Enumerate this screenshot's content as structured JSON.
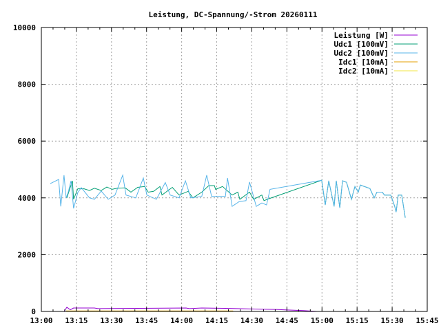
{
  "chart_data": {
    "type": "line",
    "title": "Leistung, DC-Spannung/-Strom 20260111",
    "xlabel": "",
    "ylabel": "",
    "x_unit": "minutes after 13:00",
    "xlim": [
      0,
      165
    ],
    "ylim": [
      0,
      10000
    ],
    "grid": true,
    "legend_position": "top-right",
    "x_ticks": [
      {
        "value": 0,
        "label": "13:00"
      },
      {
        "value": 15,
        "label": "13:15"
      },
      {
        "value": 30,
        "label": "13:30"
      },
      {
        "value": 45,
        "label": "13:45"
      },
      {
        "value": 60,
        "label": "14:00"
      },
      {
        "value": 75,
        "label": "14:15"
      },
      {
        "value": 90,
        "label": "14:30"
      },
      {
        "value": 105,
        "label": "14:45"
      },
      {
        "value": 120,
        "label": "15:00"
      },
      {
        "value": 135,
        "label": "15:15"
      },
      {
        "value": 150,
        "label": "15:30"
      },
      {
        "value": 165,
        "label": "15:45"
      }
    ],
    "y_ticks": [
      {
        "value": 0,
        "label": "0"
      },
      {
        "value": 2000,
        "label": "2000"
      },
      {
        "value": 4000,
        "label": "4000"
      },
      {
        "value": 6000,
        "label": "6000"
      },
      {
        "value": 8000,
        "label": "8000"
      },
      {
        "value": 10000,
        "label": "10000"
      }
    ],
    "series": [
      {
        "name": "Leistung [W]",
        "color": "#9400d3",
        "points": [
          [
            9.7,
            0
          ],
          [
            10.9,
            145
          ],
          [
            12.4,
            60
          ],
          [
            13.8,
            120
          ],
          [
            22.7,
            120
          ],
          [
            24.2,
            100
          ],
          [
            61.9,
            120
          ],
          [
            63.3,
            100
          ],
          [
            68.6,
            120
          ],
          [
            78.7,
            110
          ],
          [
            83.4,
            100
          ],
          [
            100.2,
            70
          ],
          [
            105.2,
            50
          ],
          [
            112,
            30
          ],
          [
            117.9,
            0
          ]
        ]
      },
      {
        "name": "Udc1 [100mV]",
        "color": "#009e73",
        "points": [
          [
            10.9,
            4000
          ],
          [
            13.3,
            4600
          ],
          [
            13.8,
            3950
          ],
          [
            15.6,
            4320
          ],
          [
            18.3,
            4320
          ],
          [
            20.6,
            4260
          ],
          [
            22.7,
            4340
          ],
          [
            25.6,
            4260
          ],
          [
            28.0,
            4380
          ],
          [
            30.3,
            4300
          ],
          [
            32.4,
            4340
          ],
          [
            35.9,
            4350
          ],
          [
            38.3,
            4200
          ],
          [
            41.2,
            4370
          ],
          [
            44.2,
            4400
          ],
          [
            45.7,
            4200
          ],
          [
            48.0,
            4230
          ],
          [
            50.7,
            4400
          ],
          [
            51.6,
            4100
          ],
          [
            56.0,
            4370
          ],
          [
            58.9,
            4100
          ],
          [
            62.8,
            4230
          ],
          [
            64.8,
            4000
          ],
          [
            68.6,
            4200
          ],
          [
            71.6,
            4430
          ],
          [
            74.0,
            4430
          ],
          [
            74.5,
            4300
          ],
          [
            77.5,
            4400
          ],
          [
            81.6,
            4100
          ],
          [
            84.0,
            4200
          ],
          [
            84.9,
            3950
          ],
          [
            89.0,
            4200
          ],
          [
            90.8,
            3950
          ],
          [
            94.3,
            4100
          ],
          [
            95.2,
            3900
          ],
          [
            96.6,
            3950
          ],
          [
            119.9,
            4620
          ],
          [
            121.4,
            3750
          ],
          [
            122.9,
            4600
          ],
          [
            125.2,
            3700
          ],
          [
            126.1,
            4600
          ],
          [
            127.6,
            3650
          ],
          [
            128.8,
            4600
          ],
          [
            130.5,
            4550
          ],
          [
            132.6,
            3950
          ],
          [
            134.1,
            4400
          ],
          [
            135.5,
            4200
          ],
          [
            136.4,
            4450
          ],
          [
            140.5,
            4330
          ],
          [
            142.3,
            4000
          ],
          [
            143.5,
            4200
          ],
          [
            145.8,
            4200
          ],
          [
            146.7,
            4100
          ],
          [
            149.4,
            4100
          ],
          [
            151.1,
            3700
          ],
          [
            151.7,
            3500
          ],
          [
            152.6,
            4100
          ],
          [
            154.1,
            4100
          ],
          [
            155.6,
            3300
          ]
        ]
      },
      {
        "name": "Udc2 [100mV]",
        "color": "#56b4e9",
        "points": [
          [
            3.8,
            4500
          ],
          [
            7.4,
            4650
          ],
          [
            8.3,
            3700
          ],
          [
            9.7,
            4800
          ],
          [
            10.6,
            4000
          ],
          [
            11.5,
            4200
          ],
          [
            12.7,
            4600
          ],
          [
            13.8,
            3630
          ],
          [
            15.6,
            4190
          ],
          [
            17.1,
            4360
          ],
          [
            20.6,
            4000
          ],
          [
            22.7,
            3950
          ],
          [
            25.6,
            4240
          ],
          [
            28.6,
            3950
          ],
          [
            31.5,
            4100
          ],
          [
            34.8,
            4800
          ],
          [
            36.2,
            4100
          ],
          [
            40.4,
            4000
          ],
          [
            43.6,
            4700
          ],
          [
            45.1,
            4100
          ],
          [
            49.2,
            3950
          ],
          [
            53.0,
            4540
          ],
          [
            55.1,
            4100
          ],
          [
            58.9,
            4000
          ],
          [
            61.6,
            4600
          ],
          [
            63.9,
            4000
          ],
          [
            68.6,
            4050
          ],
          [
            70.7,
            4800
          ],
          [
            72.8,
            4050
          ],
          [
            78.7,
            4050
          ],
          [
            79.6,
            4700
          ],
          [
            81.6,
            3700
          ],
          [
            84.6,
            3870
          ],
          [
            87.5,
            3900
          ],
          [
            89.0,
            4560
          ],
          [
            91.9,
            3700
          ],
          [
            94.3,
            3820
          ],
          [
            96.3,
            3750
          ],
          [
            97.8,
            4300
          ],
          [
            119.9,
            4620
          ],
          [
            121.4,
            3750
          ],
          [
            122.9,
            4600
          ],
          [
            125.2,
            3700
          ],
          [
            126.1,
            4600
          ],
          [
            127.6,
            3650
          ],
          [
            128.8,
            4600
          ],
          [
            130.5,
            4550
          ],
          [
            132.6,
            3950
          ],
          [
            134.1,
            4400
          ],
          [
            135.5,
            4200
          ],
          [
            136.4,
            4450
          ],
          [
            140.5,
            4330
          ],
          [
            142.3,
            4000
          ],
          [
            143.5,
            4200
          ],
          [
            145.8,
            4200
          ],
          [
            146.7,
            4100
          ],
          [
            149.4,
            4100
          ],
          [
            151.1,
            3700
          ],
          [
            151.7,
            3500
          ],
          [
            152.6,
            4100
          ],
          [
            154.1,
            4100
          ],
          [
            155.6,
            3300
          ]
        ]
      },
      {
        "name": "Idc1 [10mA]",
        "color": "#e69f00",
        "points": [
          [
            10.6,
            20
          ],
          [
            13.8,
            20
          ],
          [
            16,
            20
          ],
          [
            22.7,
            20
          ],
          [
            28,
            20
          ],
          [
            35,
            20
          ],
          [
            45,
            20
          ],
          [
            55,
            20
          ],
          [
            65,
            20
          ],
          [
            72,
            20
          ],
          [
            78,
            20
          ],
          [
            82,
            20
          ]
        ]
      },
      {
        "name": "Idc2 [10mA]",
        "color": "#f0e442",
        "points": [
          [
            10.6,
            5
          ],
          [
            82,
            5
          ]
        ]
      }
    ]
  }
}
